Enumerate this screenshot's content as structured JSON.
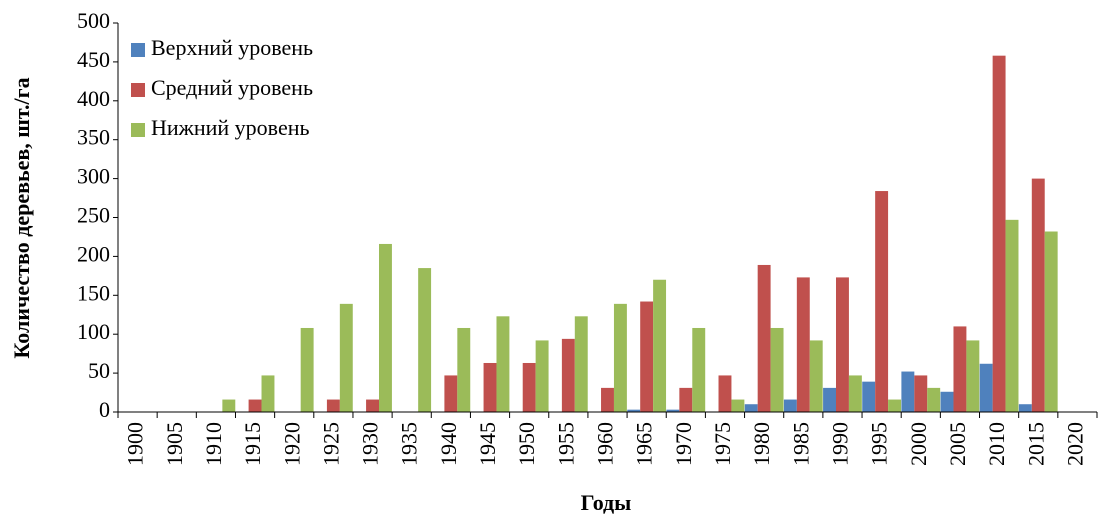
{
  "chart_data": {
    "type": "bar",
    "x_label": "Годы",
    "y_label": "Количество деревьев, шт./га",
    "categories": [
      "1900",
      "1905",
      "1910",
      "1915",
      "1920",
      "1925",
      "1930",
      "1935",
      "1940",
      "1945",
      "1950",
      "1955",
      "1960",
      "1965",
      "1970",
      "1975",
      "1980",
      "1985",
      "1990",
      "1995",
      "2000",
      "2005",
      "2010",
      "2015",
      "2020"
    ],
    "series": [
      {
        "name": "Верхний уровень",
        "color": "#4f81bd",
        "values": [
          0,
          0,
          0,
          0,
          0,
          0,
          0,
          0,
          0,
          0,
          0,
          0,
          0,
          3,
          3,
          0,
          10,
          16,
          31,
          39,
          52,
          26,
          62,
          10,
          0
        ]
      },
      {
        "name": "Средний уровень",
        "color": "#c0504d",
        "values": [
          0,
          0,
          0,
          16,
          0,
          16,
          16,
          0,
          47,
          63,
          63,
          94,
          31,
          142,
          31,
          47,
          189,
          173,
          173,
          284,
          47,
          110,
          458,
          300,
          0
        ]
      },
      {
        "name": "Нижний уровень",
        "color": "#9bbb59",
        "values": [
          0,
          0,
          16,
          47,
          108,
          139,
          216,
          185,
          108,
          123,
          92,
          123,
          139,
          170,
          108,
          16,
          108,
          92,
          47,
          16,
          31,
          92,
          247,
          232,
          0
        ]
      }
    ],
    "ylim": [
      0,
      500
    ],
    "yticks": [
      0,
      50,
      100,
      150,
      200,
      250,
      300,
      350,
      400,
      450,
      500
    ],
    "legend": "upper-left"
  }
}
